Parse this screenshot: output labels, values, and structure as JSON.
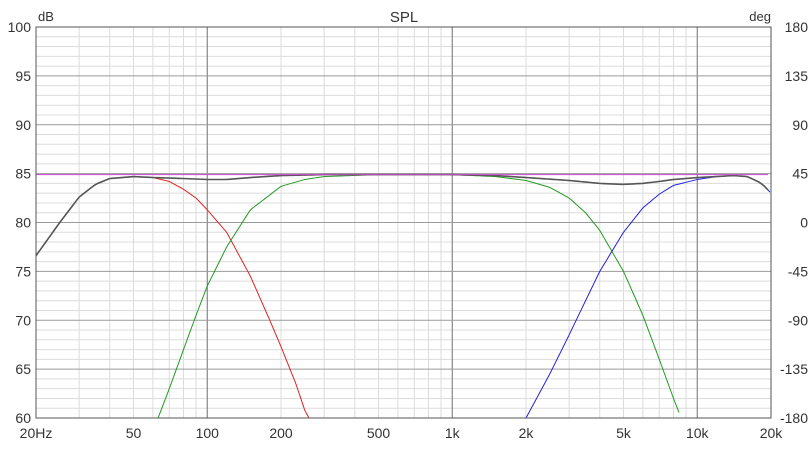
{
  "chart_data": {
    "type": "line",
    "title": "SPL",
    "left_unit": "dB",
    "right_unit": "deg",
    "x_scale": "log",
    "xlim": [
      20,
      20000
    ],
    "ylim": [
      60,
      100
    ],
    "y2lim": [
      -180,
      180
    ],
    "grid": true,
    "x_ticks": [
      {
        "value": 20,
        "label": "20Hz"
      },
      {
        "value": 50,
        "label": "50"
      },
      {
        "value": 100,
        "label": "100"
      },
      {
        "value": 200,
        "label": "200"
      },
      {
        "value": 500,
        "label": "500"
      },
      {
        "value": 1000,
        "label": "1k"
      },
      {
        "value": 2000,
        "label": "2k"
      },
      {
        "value": 5000,
        "label": "5k"
      },
      {
        "value": 10000,
        "label": "10k"
      },
      {
        "value": 20000,
        "label": "20k"
      }
    ],
    "y_ticks": [
      {
        "value": 100,
        "label": "100"
      },
      {
        "value": 95,
        "label": "95"
      },
      {
        "value": 90,
        "label": "90"
      },
      {
        "value": 85,
        "label": "85"
      },
      {
        "value": 80,
        "label": "80"
      },
      {
        "value": 75,
        "label": "75"
      },
      {
        "value": 70,
        "label": "70"
      },
      {
        "value": 65,
        "label": "65"
      },
      {
        "value": 60,
        "label": "60"
      }
    ],
    "y2_ticks": [
      {
        "value": 180,
        "label": "180"
      },
      {
        "value": 135,
        "label": "135"
      },
      {
        "value": 90,
        "label": "90"
      },
      {
        "value": 45,
        "label": "45"
      },
      {
        "value": 0,
        "label": "0"
      },
      {
        "value": -45,
        "label": "-45"
      },
      {
        "value": -90,
        "label": "-90"
      },
      {
        "value": -135,
        "label": "-135"
      },
      {
        "value": -180,
        "label": "-180"
      }
    ],
    "series": [
      {
        "color": "#dd2222",
        "points": [
          [
            20,
            76.6
          ],
          [
            25,
            80.0
          ],
          [
            30,
            82.6
          ],
          [
            35,
            83.9
          ],
          [
            40,
            84.5
          ],
          [
            50,
            84.7
          ],
          [
            60,
            84.6
          ],
          [
            70,
            84.2
          ],
          [
            80,
            83.4
          ],
          [
            90,
            82.5
          ],
          [
            100,
            81.3
          ],
          [
            120,
            79.0
          ],
          [
            150,
            74.5
          ],
          [
            180,
            70.0
          ],
          [
            200,
            67.3
          ],
          [
            230,
            63.5
          ],
          [
            250,
            60.8
          ],
          [
            260,
            60.0
          ]
        ]
      },
      {
        "color": "#229922",
        "points": [
          [
            63,
            60.0
          ],
          [
            70,
            63.0
          ],
          [
            80,
            67.0
          ],
          [
            90,
            70.5
          ],
          [
            100,
            73.5
          ],
          [
            120,
            77.5
          ],
          [
            150,
            81.3
          ],
          [
            200,
            83.7
          ],
          [
            250,
            84.4
          ],
          [
            300,
            84.7
          ],
          [
            500,
            84.9
          ],
          [
            1000,
            84.9
          ],
          [
            1500,
            84.7
          ],
          [
            2000,
            84.3
          ],
          [
            2500,
            83.6
          ],
          [
            3000,
            82.5
          ],
          [
            3500,
            81.0
          ],
          [
            4000,
            79.2
          ],
          [
            5000,
            75.0
          ],
          [
            6000,
            70.5
          ],
          [
            7000,
            66.0
          ],
          [
            8000,
            62.0
          ],
          [
            8600,
            60.0
          ]
        ]
      },
      {
        "color": "#2222dd",
        "points": [
          [
            2000,
            60.0
          ],
          [
            2500,
            64.5
          ],
          [
            3000,
            68.5
          ],
          [
            3500,
            72.0
          ],
          [
            4000,
            75.0
          ],
          [
            5000,
            79.0
          ],
          [
            6000,
            81.5
          ],
          [
            7000,
            82.9
          ],
          [
            8000,
            83.8
          ],
          [
            10000,
            84.4
          ],
          [
            12000,
            84.7
          ],
          [
            14000,
            84.8
          ],
          [
            16000,
            84.7
          ],
          [
            18000,
            84.1
          ],
          [
            19000,
            83.6
          ],
          [
            20000,
            83.0
          ]
        ]
      },
      {
        "color": "#555555",
        "points": [
          [
            20,
            76.6
          ],
          [
            25,
            80.0
          ],
          [
            30,
            82.6
          ],
          [
            35,
            83.9
          ],
          [
            40,
            84.5
          ],
          [
            50,
            84.7
          ],
          [
            60,
            84.6
          ],
          [
            80,
            84.5
          ],
          [
            100,
            84.4
          ],
          [
            120,
            84.4
          ],
          [
            150,
            84.6
          ],
          [
            200,
            84.8
          ],
          [
            300,
            84.9
          ],
          [
            500,
            84.9
          ],
          [
            1000,
            84.9
          ],
          [
            1500,
            84.8
          ],
          [
            2000,
            84.6
          ],
          [
            3000,
            84.3
          ],
          [
            4000,
            84.0
          ],
          [
            5000,
            83.9
          ],
          [
            6000,
            84.0
          ],
          [
            7000,
            84.2
          ],
          [
            8000,
            84.4
          ],
          [
            10000,
            84.6
          ],
          [
            12000,
            84.7
          ],
          [
            14000,
            84.8
          ],
          [
            16000,
            84.7
          ],
          [
            18000,
            84.1
          ],
          [
            19000,
            83.6
          ],
          [
            20000,
            83.0
          ]
        ]
      },
      {
        "color": "#cc44cc",
        "points": [
          [
            20,
            84.9
          ],
          [
            20000,
            84.9
          ]
        ]
      }
    ]
  }
}
